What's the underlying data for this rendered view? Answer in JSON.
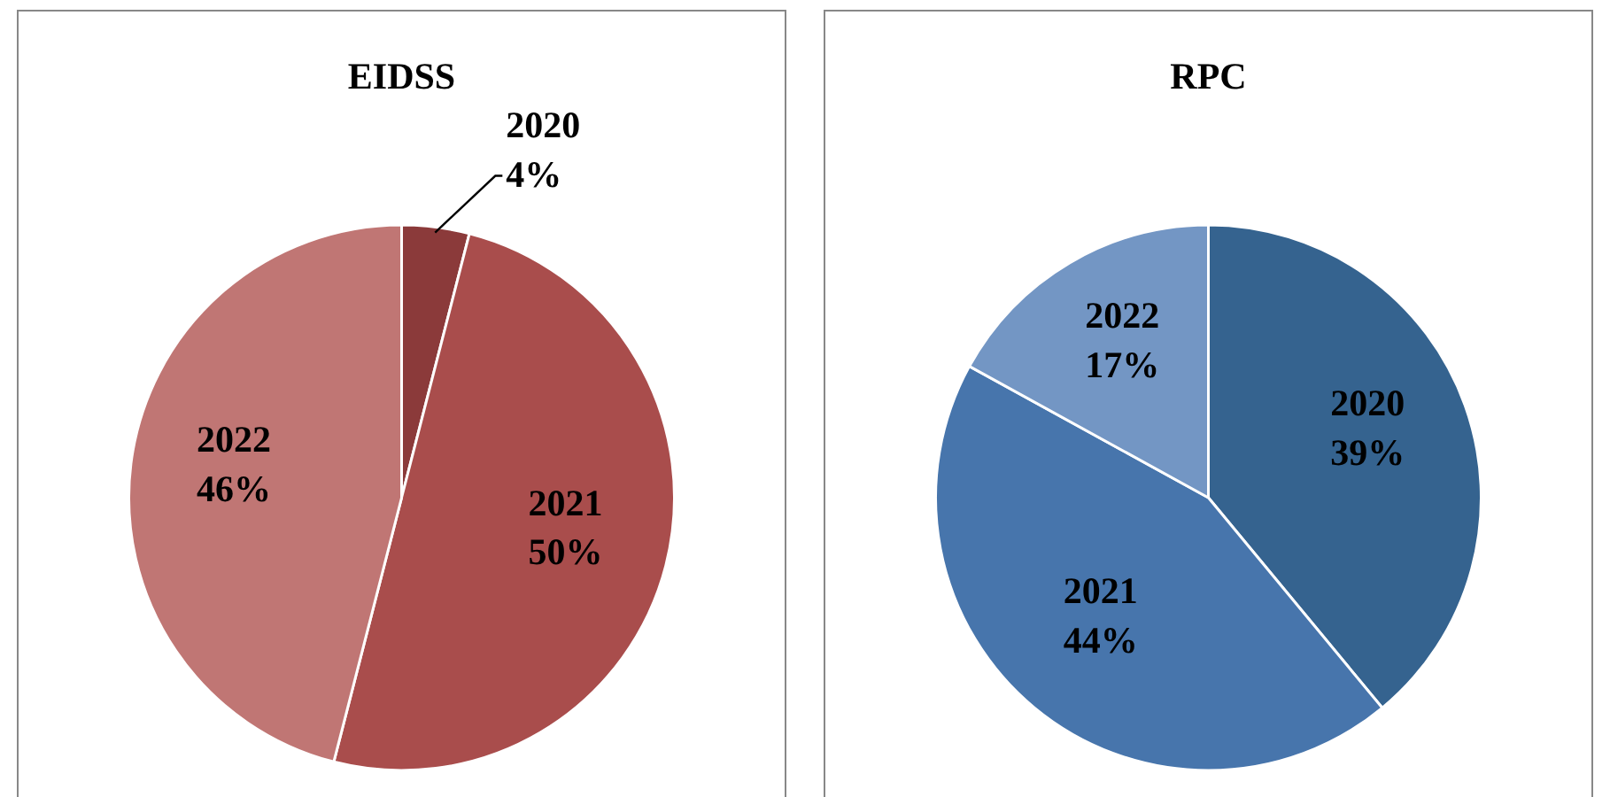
{
  "chart_data": [
    {
      "type": "pie",
      "title": "EIDSS",
      "categories": [
        "2020",
        "2021",
        "2022"
      ],
      "values": [
        4,
        50,
        46
      ],
      "colors": [
        "#8b3a3a",
        "#a94d4c",
        "#c07674"
      ],
      "value_labels": [
        "4%",
        "50%",
        "46%"
      ]
    },
    {
      "type": "pie",
      "title": "RPC",
      "categories": [
        "2020",
        "2021",
        "2022"
      ],
      "values": [
        39,
        44,
        17
      ],
      "colors": [
        "#35638f",
        "#4775ac",
        "#7396c4"
      ],
      "value_labels": [
        "39%",
        "44%",
        "17%"
      ]
    }
  ]
}
